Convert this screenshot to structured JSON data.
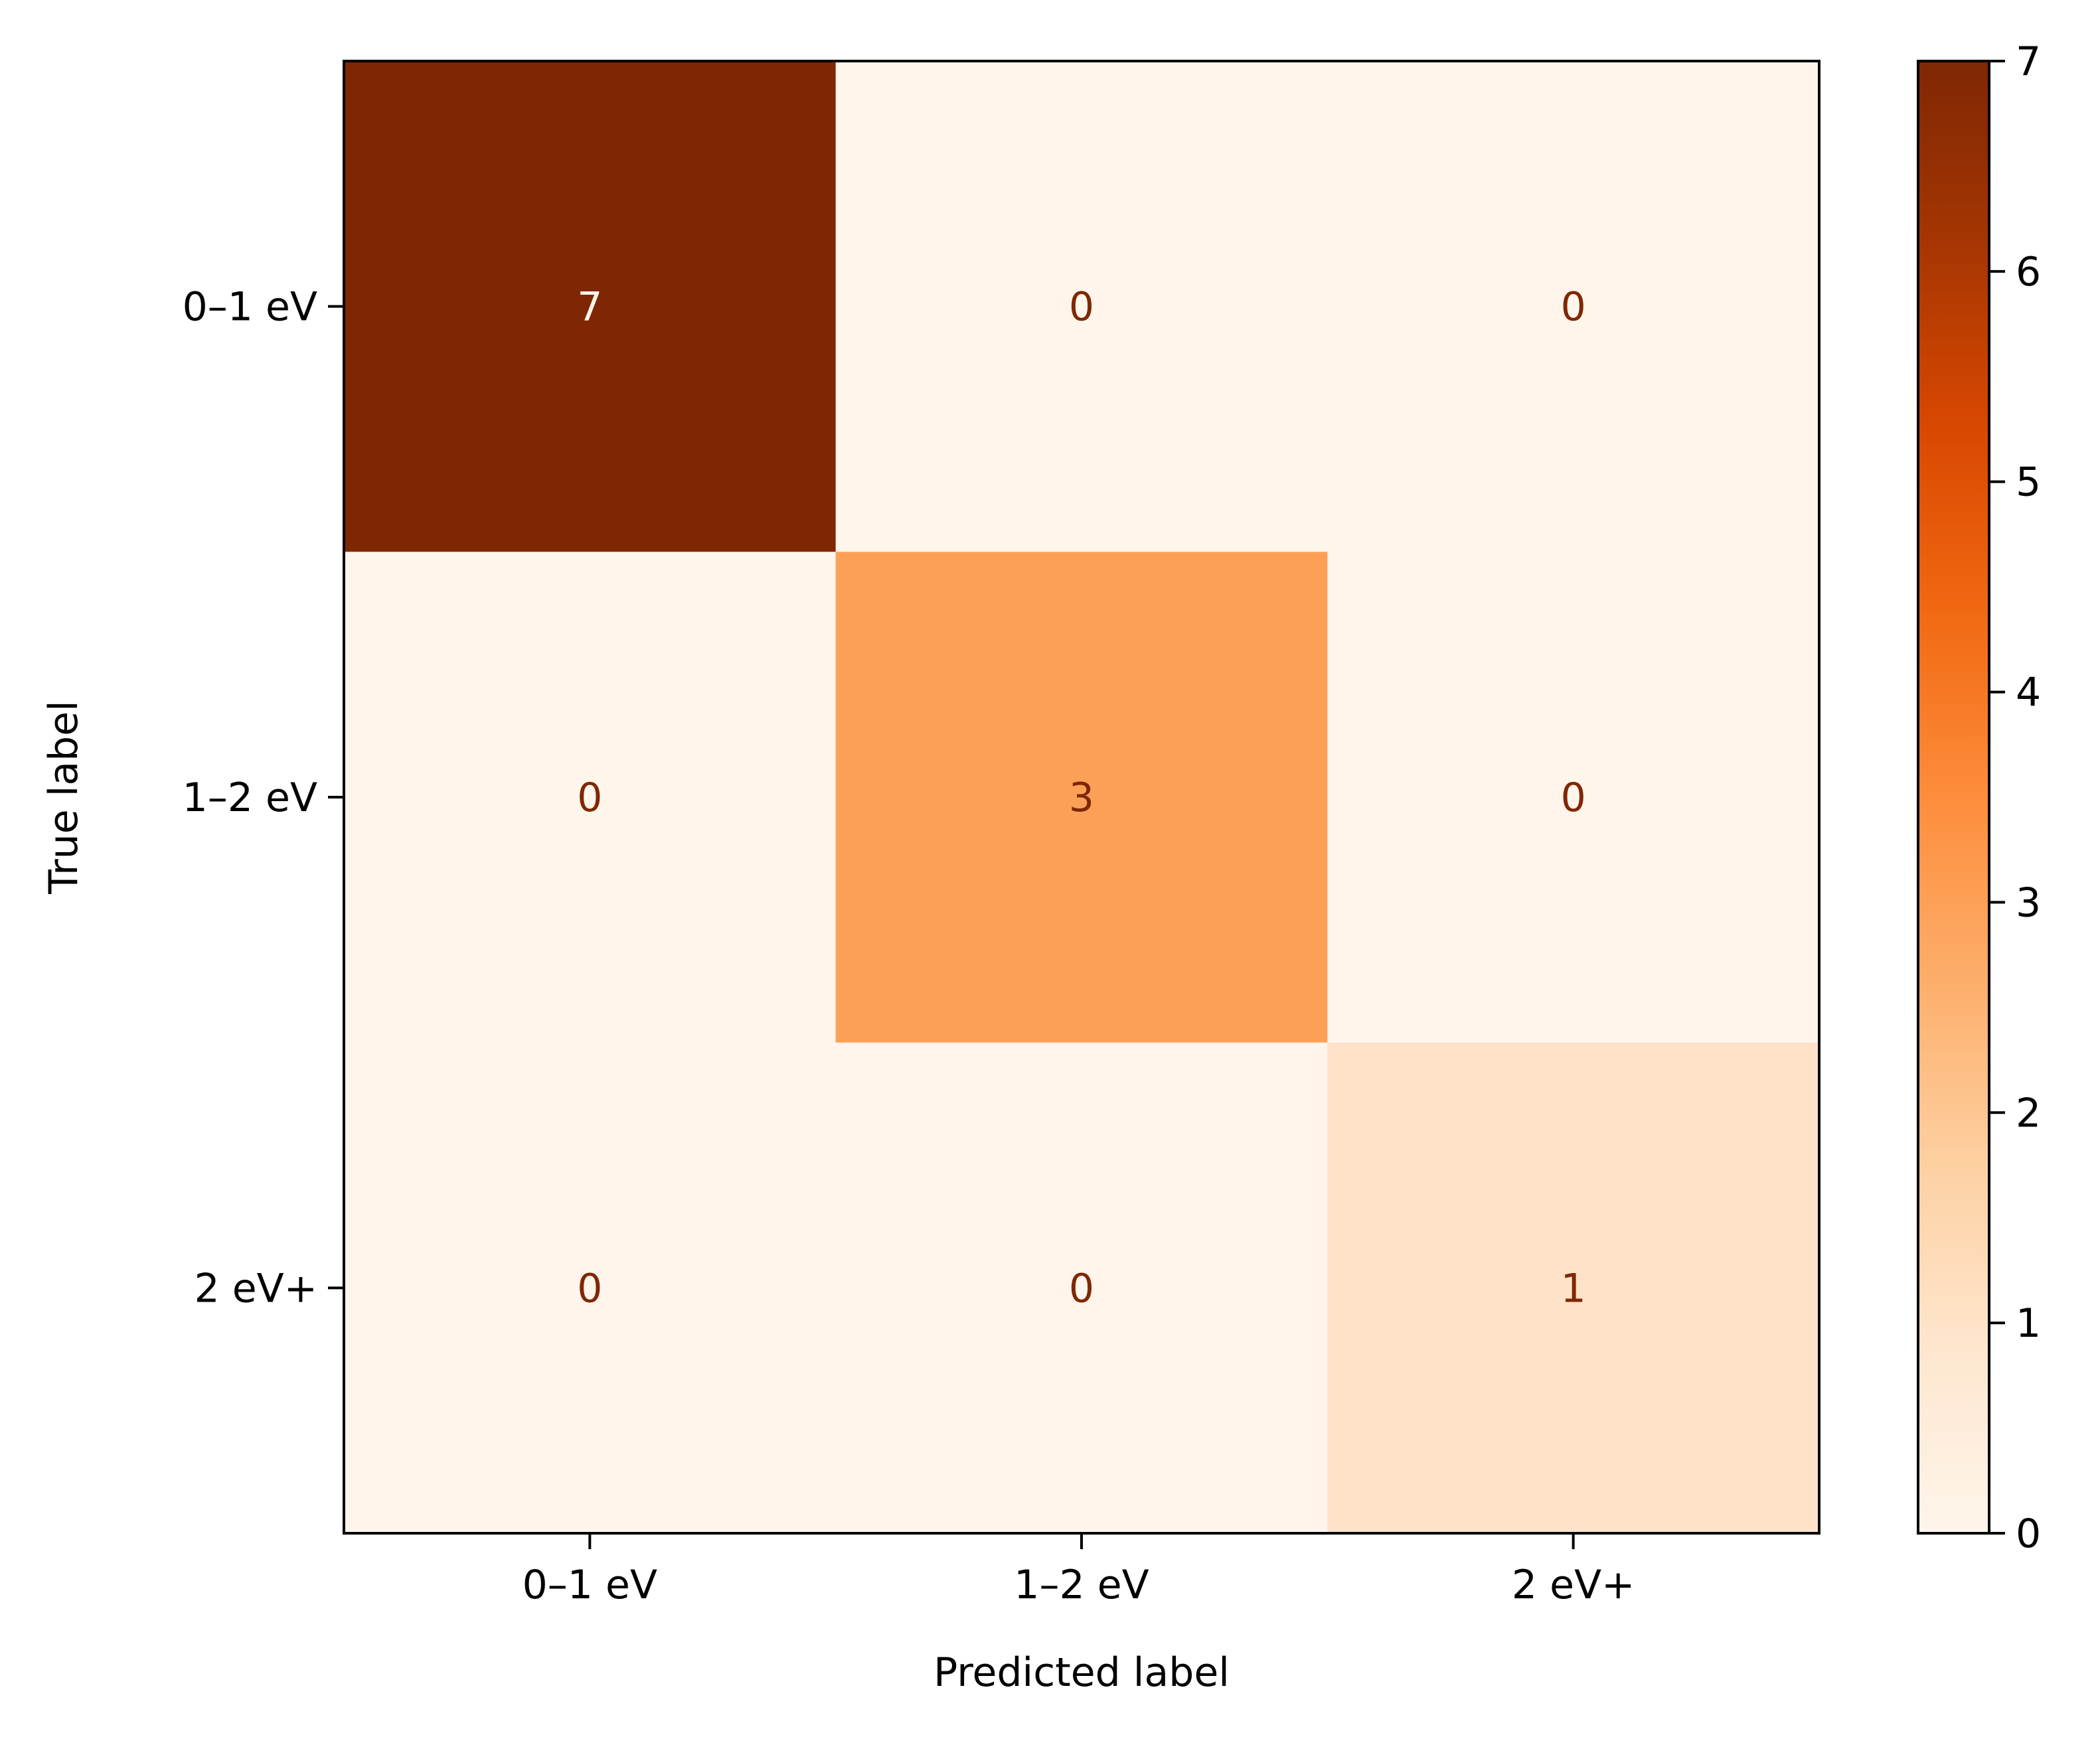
{
  "chart_data": {
    "type": "heatmap",
    "colormap": "Oranges",
    "xlabel": "Predicted label",
    "ylabel": "True label",
    "x_categories": [
      "0–1 eV",
      "1–2 eV",
      "2 eV+"
    ],
    "y_categories": [
      "0–1 eV",
      "1–2 eV",
      "2 eV+"
    ],
    "matrix": [
      [
        7,
        0,
        0
      ],
      [
        0,
        3,
        0
      ],
      [
        0,
        0,
        1
      ]
    ],
    "colorbar": {
      "range": [
        0,
        7
      ],
      "ticks": [
        "0",
        "1",
        "2",
        "3",
        "4",
        "5",
        "6",
        "7"
      ]
    },
    "colors": {
      "min": "#fff5eb",
      "max": "#7f2704",
      "text_on_light": "#7f2704",
      "text_on_dark": "#fff5eb"
    }
  }
}
